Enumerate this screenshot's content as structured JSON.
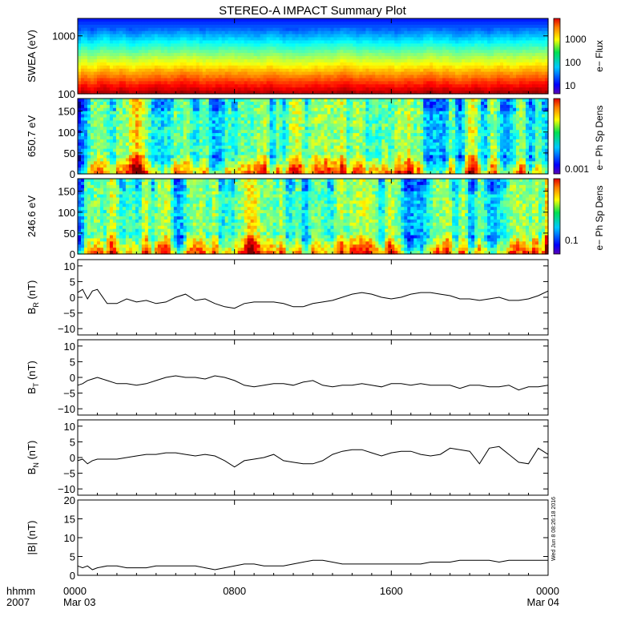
{
  "title": "STEREO-A IMPACT Summary Plot",
  "footer": {
    "time_label": "hhmm",
    "year": "2007"
  },
  "timestamp": "Wed Jun  8 08:26:18 2016",
  "x_axis": {
    "ticks": [
      {
        "t": 0,
        "label": "0000",
        "date": "Mar 03"
      },
      {
        "t": 8,
        "label": "0800",
        "date": ""
      },
      {
        "t": 16,
        "label": "1600",
        "date": ""
      },
      {
        "t": 24,
        "label": "0000",
        "date": "Mar 04"
      }
    ],
    "range_hours": [
      0,
      24
    ]
  },
  "chart_data": [
    {
      "type": "heatmap",
      "ylabel": "SWEA (eV)",
      "yscale": "log",
      "ylim": [
        100,
        2000
      ],
      "y_ticks": [
        100,
        1000
      ],
      "y_tick_labels": [
        "100",
        "1000"
      ],
      "colorbar": {
        "label": "e− Flux",
        "scale": "log",
        "ticks": [
          "10",
          "100",
          "1000"
        ]
      }
    },
    {
      "type": "heatmap",
      "ylabel": "650.7 eV",
      "ylim": [
        0,
        180
      ],
      "y_ticks": [
        0,
        50,
        100,
        150
      ],
      "y_tick_labels": [
        "0",
        "50",
        "100",
        "150"
      ],
      "colorbar": {
        "label": "e− Ph Sp Dens",
        "scale": "log",
        "ticks": [
          "0.001"
        ]
      }
    },
    {
      "type": "heatmap",
      "ylabel": "246.6 eV",
      "ylim": [
        0,
        180
      ],
      "y_ticks": [
        0,
        50,
        100,
        150
      ],
      "y_tick_labels": [
        "0",
        "50",
        "100",
        "150"
      ],
      "colorbar": {
        "label": "e− Ph Sp Dens",
        "scale": "log",
        "ticks": [
          "0.1"
        ]
      }
    },
    {
      "type": "line",
      "ylabel": {
        "sym": "B",
        "sub": "R",
        "unit": " (nT)"
      },
      "ylim": [
        -12,
        12
      ],
      "y_ticks": [
        -10,
        -5,
        0,
        5,
        10
      ],
      "y_tick_labels": [
        "−10",
        "−5",
        "0",
        "5",
        "10"
      ],
      "x": [
        0,
        0.25,
        0.5,
        0.75,
        1,
        1.5,
        2,
        2.5,
        3,
        3.5,
        4,
        4.5,
        5,
        5.5,
        6,
        6.5,
        7,
        7.5,
        8,
        8.5,
        9,
        9.5,
        10,
        10.5,
        11,
        11.5,
        12,
        12.5,
        13,
        13.5,
        14,
        14.5,
        15,
        15.5,
        16,
        16.5,
        17,
        17.5,
        18,
        18.5,
        19,
        19.5,
        20,
        20.5,
        21,
        21.5,
        22,
        22.5,
        23,
        23.5,
        24
      ],
      "y": [
        1.5,
        2.5,
        -0.5,
        2,
        2.5,
        -2,
        -2,
        -0.5,
        -1.5,
        -1,
        -2,
        -1.5,
        0,
        1,
        -1,
        -0.5,
        -2,
        -3,
        -3.5,
        -2,
        -1.5,
        -1.5,
        -1.5,
        -2,
        -3,
        -3,
        -2,
        -1.5,
        -1,
        0,
        1,
        1.5,
        1,
        0,
        -0.5,
        0,
        1,
        1.5,
        1.5,
        1,
        0.5,
        -0.5,
        -0.5,
        -1,
        -0.5,
        0,
        -1,
        -1,
        -0.5,
        0.5,
        2
      ]
    },
    {
      "type": "line",
      "ylabel": {
        "sym": "B",
        "sub": "T",
        "unit": " (nT)"
      },
      "ylim": [
        -12,
        12
      ],
      "y_ticks": [
        -10,
        -5,
        0,
        5,
        10
      ],
      "y_tick_labels": [
        "−10",
        "−5",
        "0",
        "5",
        "10"
      ],
      "x": [
        0,
        0.25,
        0.5,
        0.75,
        1,
        1.5,
        2,
        2.5,
        3,
        3.5,
        4,
        4.5,
        5,
        5.5,
        6,
        6.5,
        7,
        7.5,
        8,
        8.5,
        9,
        9.5,
        10,
        10.5,
        11,
        11.5,
        12,
        12.5,
        13,
        13.5,
        14,
        14.5,
        15,
        15.5,
        16,
        16.5,
        17,
        17.5,
        18,
        18.5,
        19,
        19.5,
        20,
        20.5,
        21,
        21.5,
        22,
        22.5,
        23,
        23.5,
        24
      ],
      "y": [
        -2.5,
        -2,
        -1,
        -0.5,
        0,
        -1,
        -2,
        -2,
        -2.5,
        -2,
        -1,
        0,
        0.5,
        0,
        0,
        -0.5,
        0.5,
        0,
        -1,
        -2.5,
        -3,
        -2.5,
        -2,
        -2,
        -2.5,
        -1.5,
        -1,
        -2.5,
        -3,
        -2.5,
        -2.5,
        -2,
        -2.5,
        -3,
        -2,
        -2,
        -2.5,
        -2,
        -2.5,
        -2.5,
        -2.5,
        -3.5,
        -2.5,
        -2.5,
        -3,
        -3,
        -2.5,
        -4,
        -3,
        -3,
        -2.5
      ]
    },
    {
      "type": "line",
      "ylabel": {
        "sym": "B",
        "sub": "N",
        "unit": " (nT)"
      },
      "ylim": [
        -12,
        12
      ],
      "y_ticks": [
        -10,
        -5,
        0,
        5,
        10
      ],
      "y_tick_labels": [
        "−10",
        "−5",
        "0",
        "5",
        "10"
      ],
      "x": [
        0,
        0.25,
        0.5,
        0.75,
        1,
        1.5,
        2,
        2.5,
        3,
        3.5,
        4,
        4.5,
        5,
        5.5,
        6,
        6.5,
        7,
        7.5,
        8,
        8.5,
        9,
        9.5,
        10,
        10.5,
        11,
        11.5,
        12,
        12.5,
        13,
        13.5,
        14,
        14.5,
        15,
        15.5,
        16,
        16.5,
        17,
        17.5,
        18,
        18.5,
        19,
        19.5,
        20,
        20.5,
        21,
        21.5,
        22,
        22.5,
        23,
        23.5,
        24
      ],
      "y": [
        -1,
        -0.5,
        -2,
        -1,
        -0.5,
        -0.5,
        -0.5,
        0,
        0.5,
        1,
        1,
        1.5,
        1.5,
        1,
        0.5,
        1,
        0.5,
        -1,
        -3,
        -1,
        -0.5,
        0,
        1,
        -1,
        -1.5,
        -2,
        -2,
        -1,
        1,
        2,
        2.5,
        2.5,
        1.5,
        0.5,
        1.5,
        2,
        2,
        1,
        0.5,
        1,
        3,
        2.5,
        2,
        -2,
        3,
        3.5,
        1,
        -1.5,
        -2,
        3,
        1
      ]
    },
    {
      "type": "line",
      "ylabel": "|B| (nT)",
      "ylim": [
        0,
        20
      ],
      "y_ticks": [
        0,
        5,
        10,
        15,
        20
      ],
      "y_tick_labels": [
        "0",
        "5",
        "10",
        "15",
        "20"
      ],
      "x": [
        0,
        0.25,
        0.5,
        0.75,
        1,
        1.5,
        2,
        2.5,
        3,
        3.5,
        4,
        4.5,
        5,
        5.5,
        6,
        6.5,
        7,
        7.5,
        8,
        8.5,
        9,
        9.5,
        10,
        10.5,
        11,
        11.5,
        12,
        12.5,
        13,
        13.5,
        14,
        14.5,
        15,
        15.5,
        16,
        16.5,
        17,
        17.5,
        18,
        18.5,
        19,
        19.5,
        20,
        20.5,
        21,
        21.5,
        22,
        22.5,
        23,
        23.5,
        24
      ],
      "y": [
        2.5,
        2,
        2.5,
        1.5,
        2,
        2.5,
        2.5,
        2,
        2,
        2,
        2.5,
        2.5,
        2.5,
        2.5,
        2.5,
        2,
        1.5,
        2,
        2.5,
        3,
        3,
        2.5,
        2.5,
        2.5,
        3,
        3.5,
        4,
        4,
        3.5,
        3,
        3,
        3,
        3,
        3,
        3,
        3,
        3,
        3,
        3.5,
        3.5,
        3.5,
        4,
        4,
        4,
        4,
        3.5,
        4,
        4,
        4,
        4,
        4
      ]
    }
  ]
}
